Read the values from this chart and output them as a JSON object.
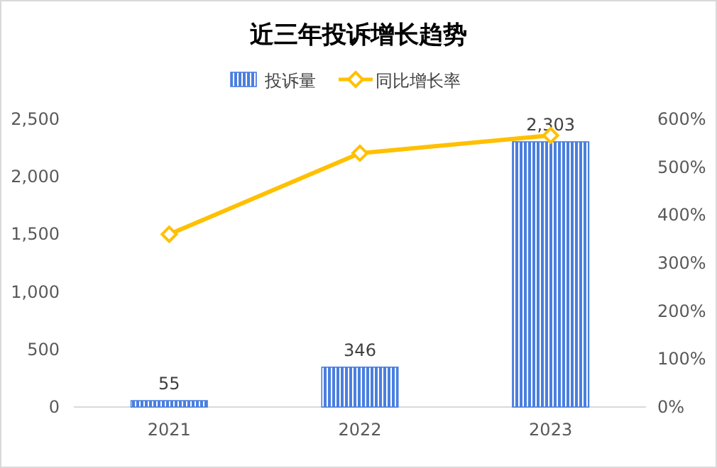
{
  "chart_data": {
    "type": "bar",
    "title": "近三年投诉增长趋势",
    "categories": [
      "2021",
      "2022",
      "2023"
    ],
    "series": [
      {
        "name": "投诉量",
        "color": "#4a7fe0",
        "values": [
          55,
          346,
          2303
        ],
        "value_labels": [
          "55",
          "346",
          "2,303"
        ]
      },
      {
        "name": "同比增长率",
        "type": "line",
        "axis": "y2",
        "color": "#ffc000",
        "marker": "diamond",
        "values": [
          360,
          529,
          566
        ]
      }
    ],
    "ylim": [
      0,
      2500
    ],
    "yticks": [
      {
        "value": 0,
        "label": "0"
      },
      {
        "value": 500,
        "label": "500"
      },
      {
        "value": 1000,
        "label": "1,000"
      },
      {
        "value": 1500,
        "label": "1,500"
      },
      {
        "value": 2000,
        "label": "2,000"
      },
      {
        "value": 2500,
        "label": "2,500"
      }
    ],
    "y2lim": [
      0,
      600
    ],
    "y2ticks": [
      {
        "value": 0,
        "label": "0%"
      },
      {
        "value": 100,
        "label": "100%"
      },
      {
        "value": 200,
        "label": "200%"
      },
      {
        "value": 300,
        "label": "300%"
      },
      {
        "value": 400,
        "label": "400%"
      },
      {
        "value": 500,
        "label": "500%"
      },
      {
        "value": 600,
        "label": "600%"
      }
    ],
    "legend": "top"
  }
}
